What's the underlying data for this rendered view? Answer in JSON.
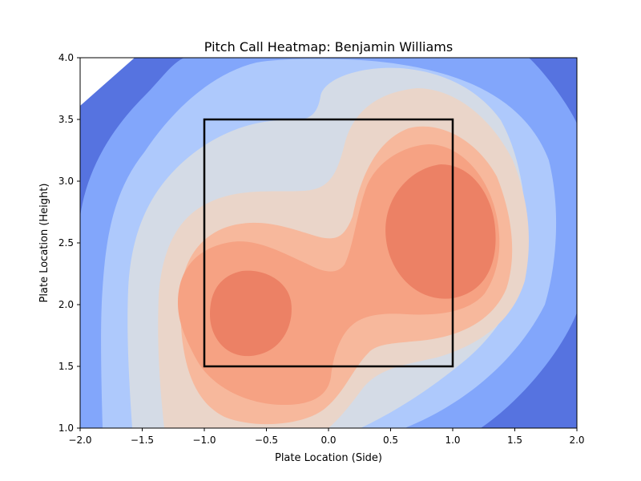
{
  "chart_data": {
    "type": "heatmap",
    "title": "Pitch Call Heatmap: Benjamin Williams",
    "xlabel": "Plate Location (Side)",
    "ylabel": "Plate Location (Height)",
    "xlim": [
      -2.0,
      2.0
    ],
    "ylim": [
      1.0,
      4.0
    ],
    "x_ticks": [
      "−2.0",
      "−1.5",
      "−1.0",
      "−0.5",
      "0.0",
      "0.5",
      "1.0",
      "1.5",
      "2.0"
    ],
    "y_ticks": [
      "1.0",
      "1.5",
      "2.0",
      "2.5",
      "3.0",
      "3.5",
      "4.0"
    ],
    "x_tick_values": [
      -2.0,
      -1.5,
      -1.0,
      -0.5,
      0.0,
      0.5,
      1.0,
      1.5,
      2.0
    ],
    "y_tick_values": [
      1.0,
      1.5,
      2.0,
      2.5,
      3.0,
      3.5,
      4.0
    ],
    "colormap": "coolwarm",
    "grid": false,
    "contour_colors": [
      "#ffffff",
      "#5673e0",
      "#82a6fb",
      "#aec9fc",
      "#d4dbe6",
      "#ead5c9",
      "#f7b89c",
      "#f6a283",
      "#ec8165",
      "#d24b40"
    ],
    "density_peaks": [
      {
        "x": 0.93,
        "y": 2.6,
        "level": "max"
      },
      {
        "x": -0.62,
        "y": 1.93,
        "level": "max"
      }
    ],
    "strike_zone": {
      "x": [
        -1.0,
        1.0
      ],
      "y": [
        1.5,
        3.5
      ],
      "color": "#000000"
    }
  }
}
